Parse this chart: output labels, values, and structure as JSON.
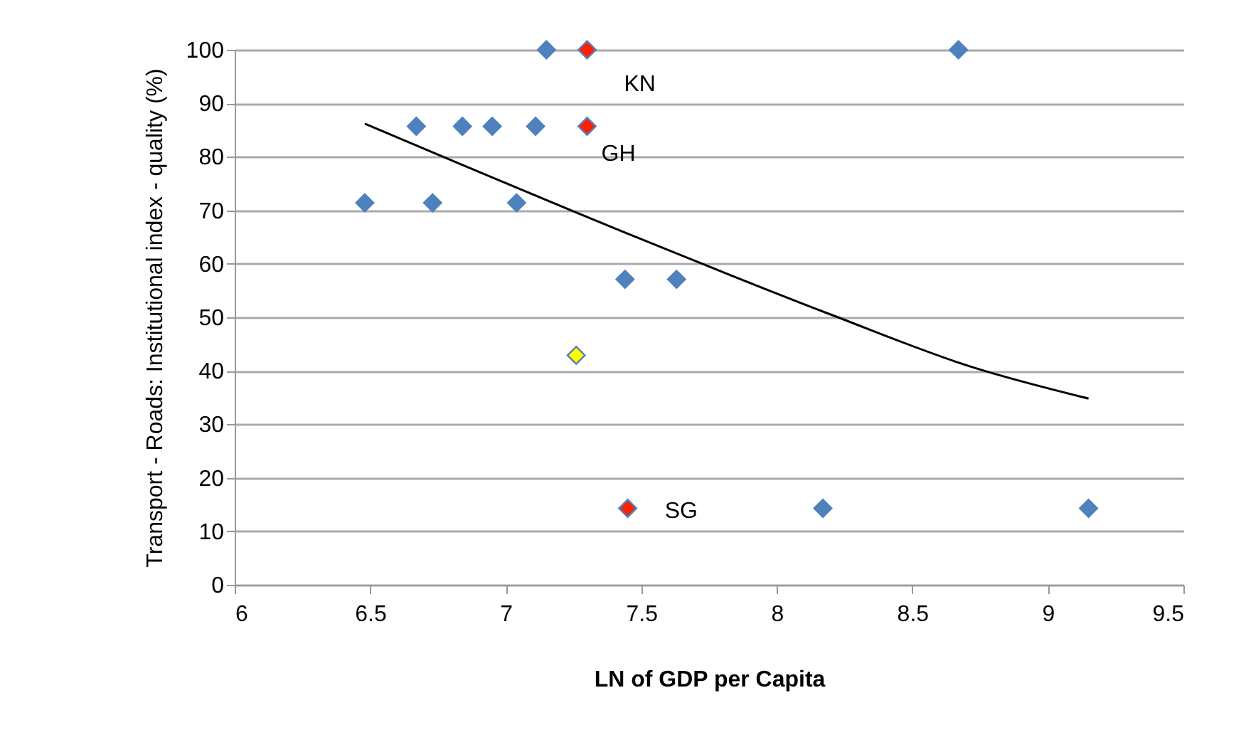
{
  "chart_data": {
    "type": "scatter",
    "xlabel": "LN of GDP per Capita",
    "ylabel": "Transport - Roads: Institutional index - quality (%)",
    "xlim": [
      6,
      9.5
    ],
    "xticks": [
      6,
      6.5,
      7,
      7.5,
      8,
      8.5,
      9,
      9.5
    ],
    "ylim": [
      0,
      100
    ],
    "yticks": [
      0,
      10,
      20,
      30,
      40,
      50,
      60,
      70,
      80,
      90,
      100
    ],
    "grid": "y",
    "marker": "diamond",
    "series": [
      {
        "color": "#4f81bd",
        "x": [
          6.48,
          6.73,
          7.04,
          6.67,
          6.84,
          6.95,
          7.11,
          7.15,
          8.67,
          7.44,
          7.63,
          8.17,
          9.15
        ],
        "values": [
          71.4,
          71.4,
          71.4,
          85.7,
          85.7,
          85.7,
          85.7,
          100,
          100,
          57.1,
          57.1,
          14.3,
          14.3
        ]
      },
      {
        "color": "#ff2000",
        "x": [
          7.3,
          7.3,
          7.45
        ],
        "values": [
          100,
          85.7,
          14.3
        ]
      },
      {
        "color": "#ffff00",
        "x": [
          7.26
        ],
        "values": [
          42.9
        ]
      },
      {
        "type": "line",
        "marker": "none",
        "color": "#000000",
        "x": [
          6.48,
          7.5,
          8.2,
          8.72,
          9.15
        ],
        "values": [
          86.2,
          64.6,
          50.5,
          40.7,
          34.8
        ]
      }
    ],
    "annotations": [
      "KN",
      "GH",
      "SG"
    ]
  }
}
